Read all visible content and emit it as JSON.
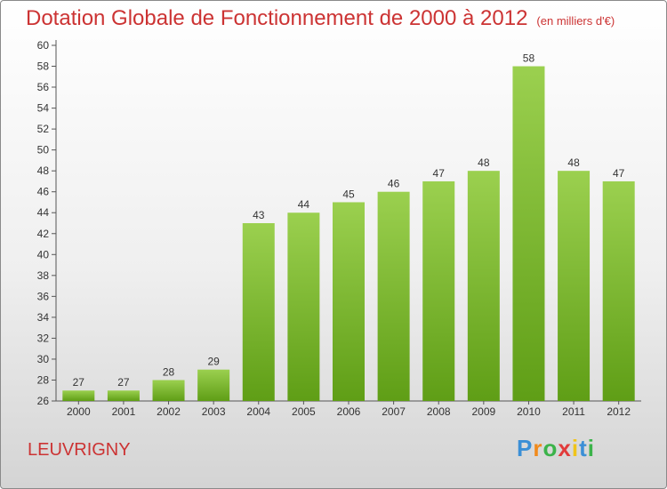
{
  "chart_data": {
    "type": "bar",
    "title": "Dotation Globale de Fonctionnement de 2000 à 2012",
    "subtitle": "(en milliers d'€)",
    "categories": [
      "2000",
      "2001",
      "2002",
      "2003",
      "2004",
      "2005",
      "2006",
      "2007",
      "2008",
      "2009",
      "2010",
      "2011",
      "2012"
    ],
    "values": [
      27,
      27,
      28,
      29,
      43,
      44,
      45,
      46,
      47,
      48,
      58,
      48,
      47
    ],
    "ylim": [
      26,
      60
    ],
    "yticks": [
      26,
      28,
      30,
      32,
      34,
      36,
      38,
      40,
      42,
      44,
      46,
      48,
      50,
      52,
      54,
      56,
      58,
      60
    ],
    "xlabel": "",
    "ylabel": "",
    "bar_color_top": "#9bd04f",
    "bar_color_bottom": "#5f9e16",
    "grid": false
  },
  "commune_name": "LEUVRIGNY",
  "logo": {
    "letters": [
      "P",
      "r",
      "o",
      "x",
      "i",
      "t",
      "i"
    ],
    "colors": [
      "#3b8fd6",
      "#f08a1c",
      "#3bb34a",
      "#e23b3b",
      "#f0c419",
      "#3b8fd6",
      "#3bb34a"
    ]
  }
}
